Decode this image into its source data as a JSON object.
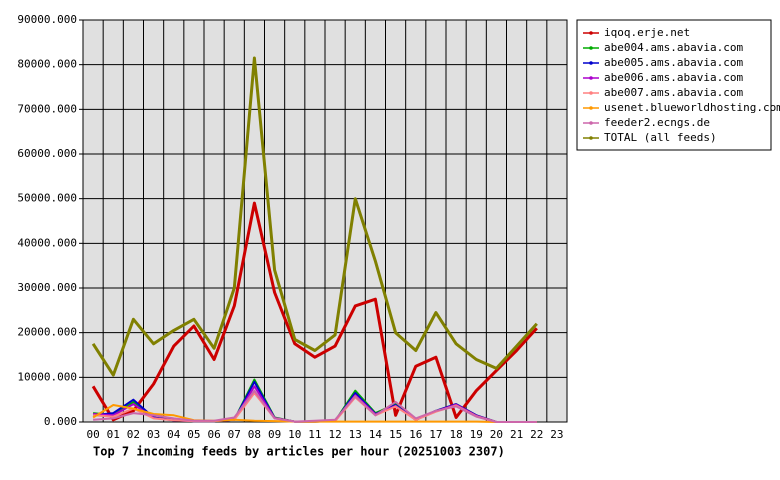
{
  "chart_data": {
    "type": "line",
    "title": "Top 7 incoming feeds by articles per hour (20251003 2307)",
    "categories": [
      "00",
      "01",
      "02",
      "03",
      "04",
      "05",
      "06",
      "07",
      "08",
      "09",
      "10",
      "11",
      "12",
      "13",
      "14",
      "15",
      "16",
      "17",
      "18",
      "19",
      "20",
      "21",
      "22",
      "23"
    ],
    "ylim": [
      0,
      90000
    ],
    "yticks": [
      {
        "value": 0,
        "label": "0.000"
      },
      {
        "value": 10000,
        "label": "10000.000"
      },
      {
        "value": 20000,
        "label": "20000.000"
      },
      {
        "value": 30000,
        "label": "30000.000"
      },
      {
        "value": 40000,
        "label": "40000.000"
      },
      {
        "value": 50000,
        "label": "50000.000"
      },
      {
        "value": 60000,
        "label": "60000.000"
      },
      {
        "value": 70000,
        "label": "70000.000"
      },
      {
        "value": 80000,
        "label": "80000.000"
      },
      {
        "value": 90000,
        "label": "90000.000"
      }
    ],
    "grid": true,
    "legend": "right",
    "series": [
      {
        "name": "iqoq.erje.net",
        "color": "#cc0000",
        "values": [
          8000,
          500,
          2500,
          8500,
          17000,
          21500,
          14000,
          26000,
          49000,
          29000,
          17500,
          14500,
          17000,
          26000,
          27500,
          1500,
          12500,
          14500,
          1000,
          7000,
          11500,
          16000,
          21000,
          null
        ]
      },
      {
        "name": "abe004.ams.abavia.com",
        "color": "#00aa00",
        "values": [
          2000,
          1500,
          4500,
          1000,
          500,
          200,
          200,
          500,
          9500,
          1000,
          100,
          100,
          200,
          7000,
          2000,
          4000,
          500,
          2500,
          4000,
          1500,
          0,
          0,
          0,
          null
        ]
      },
      {
        "name": "abe005.ams.abavia.com",
        "color": "#0000cc",
        "values": [
          1500,
          2000,
          5000,
          1000,
          400,
          200,
          200,
          500,
          9000,
          900,
          100,
          100,
          200,
          6500,
          1800,
          3800,
          500,
          2500,
          4000,
          1500,
          0,
          0,
          0,
          null
        ]
      },
      {
        "name": "abe006.ams.abavia.com",
        "color": "#aa00cc",
        "values": [
          1800,
          1500,
          4000,
          900,
          400,
          200,
          200,
          500,
          8000,
          900,
          100,
          100,
          200,
          6000,
          1700,
          3600,
          500,
          2400,
          3900,
          1400,
          0,
          0,
          0,
          null
        ]
      },
      {
        "name": "abe007.ams.abavia.com",
        "color": "#ff8080",
        "values": [
          1500,
          1200,
          3000,
          800,
          400,
          200,
          200,
          500,
          6500,
          800,
          100,
          100,
          200,
          5500,
          1500,
          3500,
          500,
          2300,
          3700,
          1300,
          0,
          0,
          0,
          null
        ]
      },
      {
        "name": "usenet.blueworldhosting.com",
        "color": "#ff9900",
        "values": [
          1000,
          3800,
          3000,
          1800,
          1500,
          400,
          300,
          500,
          300,
          200,
          100,
          100,
          100,
          100,
          100,
          100,
          100,
          100,
          100,
          100,
          0,
          0,
          0,
          null
        ]
      },
      {
        "name": "feeder2.ecngs.de",
        "color": "#cc66aa",
        "values": [
          500,
          800,
          2000,
          1500,
          800,
          300,
          300,
          1000,
          7000,
          800,
          100,
          300,
          500,
          5800,
          1500,
          4500,
          800,
          2500,
          3500,
          1200,
          0,
          0,
          0,
          null
        ]
      },
      {
        "name": "TOTAL (all feeds)",
        "color": "#808000",
        "values": [
          17500,
          10500,
          23000,
          17500,
          20500,
          23000,
          16500,
          30000,
          81500,
          34000,
          18500,
          16000,
          19500,
          50000,
          36000,
          20000,
          16000,
          24500,
          17500,
          14000,
          12000,
          17000,
          22000,
          null
        ]
      }
    ]
  }
}
